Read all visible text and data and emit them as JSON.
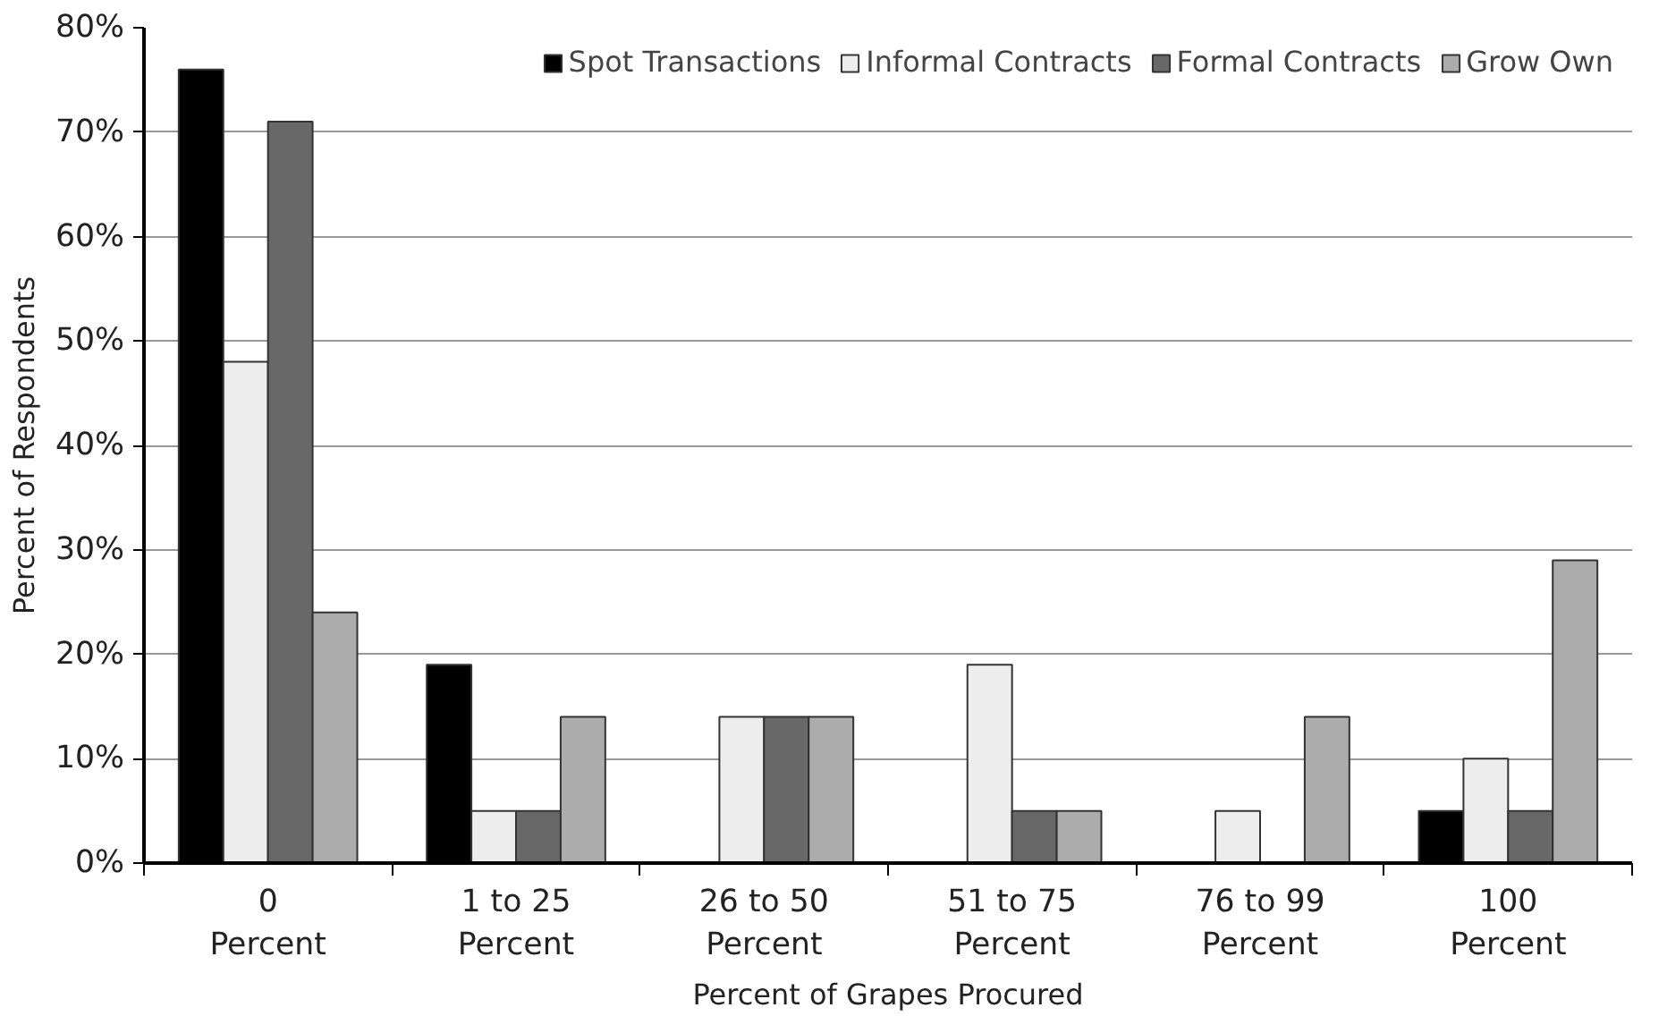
{
  "chart_data": {
    "type": "bar",
    "xlabel": "Percent of Grapes Procured",
    "ylabel": "Percent of Respondents",
    "categories": [
      "0\nPercent",
      "1 to 25\nPercent",
      "26 to 50\nPercent",
      "51 to 75\nPercent",
      "76 to 99\nPercent",
      "100\nPercent"
    ],
    "series": [
      {
        "name": "Spot Transactions",
        "color": "#000000",
        "values": [
          76,
          19,
          null,
          null,
          null,
          5
        ]
      },
      {
        "name": "Informal Contracts",
        "color": "#ededed",
        "values": [
          48,
          5,
          14,
          19,
          5,
          10
        ]
      },
      {
        "name": "Formal Contracts",
        "color": "#686868",
        "values": [
          71,
          5,
          14,
          5,
          null,
          5
        ]
      },
      {
        "name": "Grow Own",
        "color": "#acacac",
        "values": [
          24,
          14,
          14,
          5,
          14,
          29
        ]
      }
    ],
    "ylim": [
      0,
      80
    ],
    "yticks": [
      {
        "value": 0,
        "label": "0%"
      },
      {
        "value": 10,
        "label": "10%"
      },
      {
        "value": 20,
        "label": "20%"
      },
      {
        "value": 30,
        "label": "30%"
      },
      {
        "value": 40,
        "label": "40%"
      },
      {
        "value": 50,
        "label": "50%"
      },
      {
        "value": 60,
        "label": "60%"
      },
      {
        "value": 70,
        "label": "70%"
      },
      {
        "value": 80,
        "label": "80%"
      }
    ],
    "grid": "y",
    "legend": "top right"
  }
}
